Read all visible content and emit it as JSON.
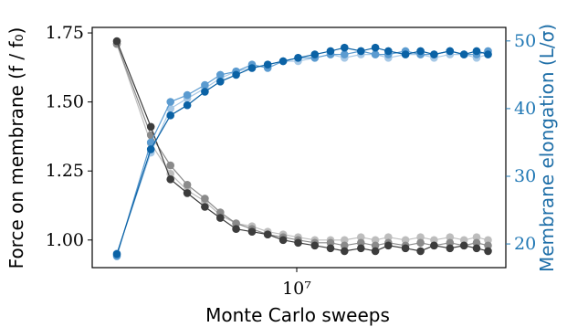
{
  "chart_data": {
    "type": "scatter",
    "title": "",
    "xlabel": "Monte Carlo sweeps",
    "ylabel_left": "Force on membrane (f / f₀)",
    "ylabel_right": "Membrane elongation (L/σ)",
    "xscale": "log",
    "x_ticks": [
      {
        "value": 10000000,
        "label": "10⁷"
      }
    ],
    "y_left_ticks": [
      "1.00",
      "1.25",
      "1.50",
      "1.75"
    ],
    "y_right_ticks": [
      "20",
      "30",
      "40",
      "50"
    ],
    "ylim_left": [
      0.9,
      1.77
    ],
    "ylim_right": [
      16.5,
      52
    ],
    "xlim": [
      1800000,
      52000000
    ],
    "grid": false,
    "legend": "none",
    "colors": {
      "force": [
        "#3c3c3c",
        "#8a8a8a",
        "#bdbdbd"
      ],
      "elongation": [
        "#0b62a5",
        "#5b9bd0",
        "#a6c8e6"
      ]
    },
    "series": [
      {
        "axis": "left",
        "role": "force",
        "shade": 0,
        "x": [
          2200000,
          2900000,
          3400000,
          3900000,
          4500000,
          5100000,
          5800000,
          6600000,
          7500000,
          8500000,
          9600000,
          11000000,
          12500000,
          14000000,
          16000000,
          18000000,
          20000000,
          23000000,
          26000000,
          29000000,
          33000000,
          37000000,
          41000000,
          45000000
        ],
        "y": [
          1.72,
          1.41,
          1.22,
          1.17,
          1.12,
          1.08,
          1.04,
          1.03,
          1.02,
          1.0,
          0.99,
          0.98,
          0.97,
          0.96,
          0.97,
          0.96,
          0.98,
          0.97,
          0.96,
          0.98,
          0.97,
          0.98,
          0.97,
          0.96
        ]
      },
      {
        "axis": "left",
        "role": "force",
        "shade": 1,
        "x": [
          2200000,
          2900000,
          3400000,
          3900000,
          4500000,
          5100000,
          5800000,
          6600000,
          7500000,
          8500000,
          9600000,
          11000000,
          12500000,
          14000000,
          16000000,
          18000000,
          20000000,
          23000000,
          26000000,
          29000000,
          33000000,
          37000000,
          41000000,
          45000000
        ],
        "y": [
          1.71,
          1.38,
          1.27,
          1.2,
          1.15,
          1.1,
          1.06,
          1.04,
          1.02,
          1.01,
          1.0,
          0.99,
          0.99,
          0.98,
          0.99,
          0.98,
          0.99,
          0.98,
          0.99,
          0.98,
          0.99,
          0.98,
          0.99,
          0.98
        ]
      },
      {
        "axis": "left",
        "role": "force",
        "shade": 2,
        "x": [
          2200000,
          2900000,
          3400000,
          3900000,
          4500000,
          5100000,
          5800000,
          6600000,
          7500000,
          8500000,
          9600000,
          11000000,
          12500000,
          14000000,
          16000000,
          18000000,
          20000000,
          23000000,
          26000000,
          29000000,
          33000000,
          37000000,
          41000000,
          45000000
        ],
        "y": [
          1.71,
          1.35,
          1.24,
          1.18,
          1.14,
          1.09,
          1.06,
          1.05,
          1.03,
          1.02,
          1.01,
          1.0,
          1.0,
          1.0,
          1.01,
          1.0,
          1.01,
          1.0,
          1.01,
          1.0,
          1.01,
          1.0,
          1.01,
          1.0
        ]
      },
      {
        "axis": "right",
        "role": "elongation",
        "shade": 0,
        "x": [
          2200000,
          2900000,
          3400000,
          3900000,
          4500000,
          5100000,
          5800000,
          6600000,
          7500000,
          8500000,
          9600000,
          11000000,
          12500000,
          14000000,
          16000000,
          18000000,
          20000000,
          23000000,
          26000000,
          29000000,
          33000000,
          37000000,
          41000000,
          45000000
        ],
        "y": [
          18.5,
          34,
          39,
          40.5,
          42.5,
          44,
          45,
          46,
          46.5,
          47,
          47.5,
          48,
          48.5,
          49,
          48.5,
          49,
          48.5,
          48,
          48.5,
          48,
          48.5,
          48,
          48.5,
          48
        ]
      },
      {
        "axis": "right",
        "role": "elongation",
        "shade": 1,
        "x": [
          2200000,
          2900000,
          3400000,
          3900000,
          4500000,
          5100000,
          5800000,
          6600000,
          7500000,
          8500000,
          9600000,
          11000000,
          12500000,
          14000000,
          16000000,
          18000000,
          20000000,
          23000000,
          26000000,
          29000000,
          33000000,
          37000000,
          41000000,
          45000000
        ],
        "y": [
          18.2,
          35,
          41,
          42,
          43.5,
          45,
          45.5,
          46.5,
          46,
          47,
          47.5,
          47.5,
          48,
          48,
          48.5,
          48,
          48,
          48.5,
          48,
          48,
          48.5,
          48,
          48,
          48.5
        ]
      },
      {
        "axis": "right",
        "role": "elongation",
        "shade": 2,
        "x": [
          2200000,
          2900000,
          3400000,
          3900000,
          4500000,
          5100000,
          5800000,
          6600000,
          7500000,
          8500000,
          9600000,
          11000000,
          12500000,
          14000000,
          16000000,
          18000000,
          20000000,
          23000000,
          26000000,
          29000000,
          33000000,
          37000000,
          41000000,
          45000000
        ],
        "y": [
          18.6,
          33.5,
          40,
          41.5,
          43,
          44.5,
          45.5,
          46,
          46.5,
          47,
          47,
          47.5,
          48,
          47.5,
          48,
          48,
          47.5,
          48,
          48,
          47.5,
          48,
          48,
          47.5,
          48
        ]
      }
    ]
  }
}
